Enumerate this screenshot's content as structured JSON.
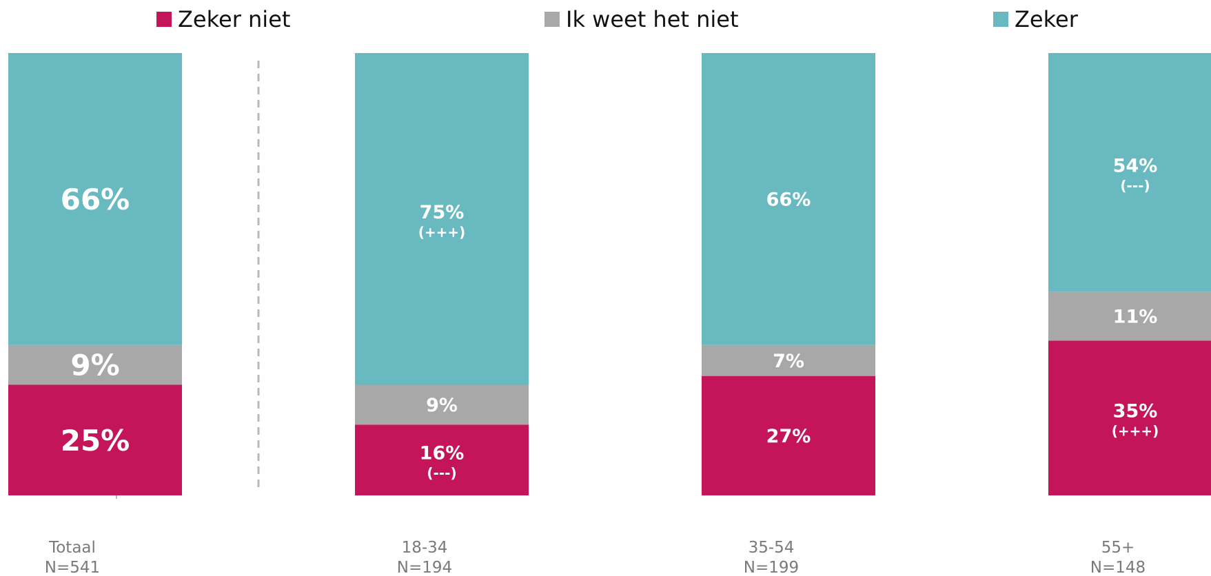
{
  "legend": {
    "zeker_niet": "Zeker niet",
    "weet_niet": "Ik weet het niet",
    "zeker": "Zeker"
  },
  "chart_data": {
    "type": "bar",
    "stacked": true,
    "colors": {
      "zeker_niet": "#C4155A",
      "weet_niet": "#A8A8A8",
      "zeker": "#69B9C0",
      "divider": "#B8B8B8",
      "category_text": "#7A7A7A"
    },
    "ylim": [
      0,
      100
    ],
    "categories": [
      {
        "name": "Totaal",
        "n": "N=541"
      },
      {
        "name": "18-34",
        "n": "N=194"
      },
      {
        "name": "35-54",
        "n": "N=199"
      },
      {
        "name": "55+",
        "n": "N=148"
      }
    ],
    "series": [
      {
        "key": "zeker_niet",
        "values": [
          25,
          16,
          27,
          35
        ],
        "labels": [
          "25%",
          "16%",
          "27%",
          "35%"
        ],
        "sig": [
          "",
          "(---)",
          "",
          "(+++)"
        ]
      },
      {
        "key": "weet_niet",
        "values": [
          9,
          9,
          7,
          11
        ],
        "labels": [
          "9%",
          "9%",
          "7%",
          "11%"
        ],
        "sig": [
          "",
          "",
          "",
          ""
        ]
      },
      {
        "key": "zeker",
        "values": [
          66,
          75,
          66,
          54
        ],
        "labels": [
          "66%",
          "75%",
          "66%",
          "54%"
        ],
        "sig": [
          "",
          "(+++)",
          "",
          "(---)"
        ]
      }
    ]
  }
}
